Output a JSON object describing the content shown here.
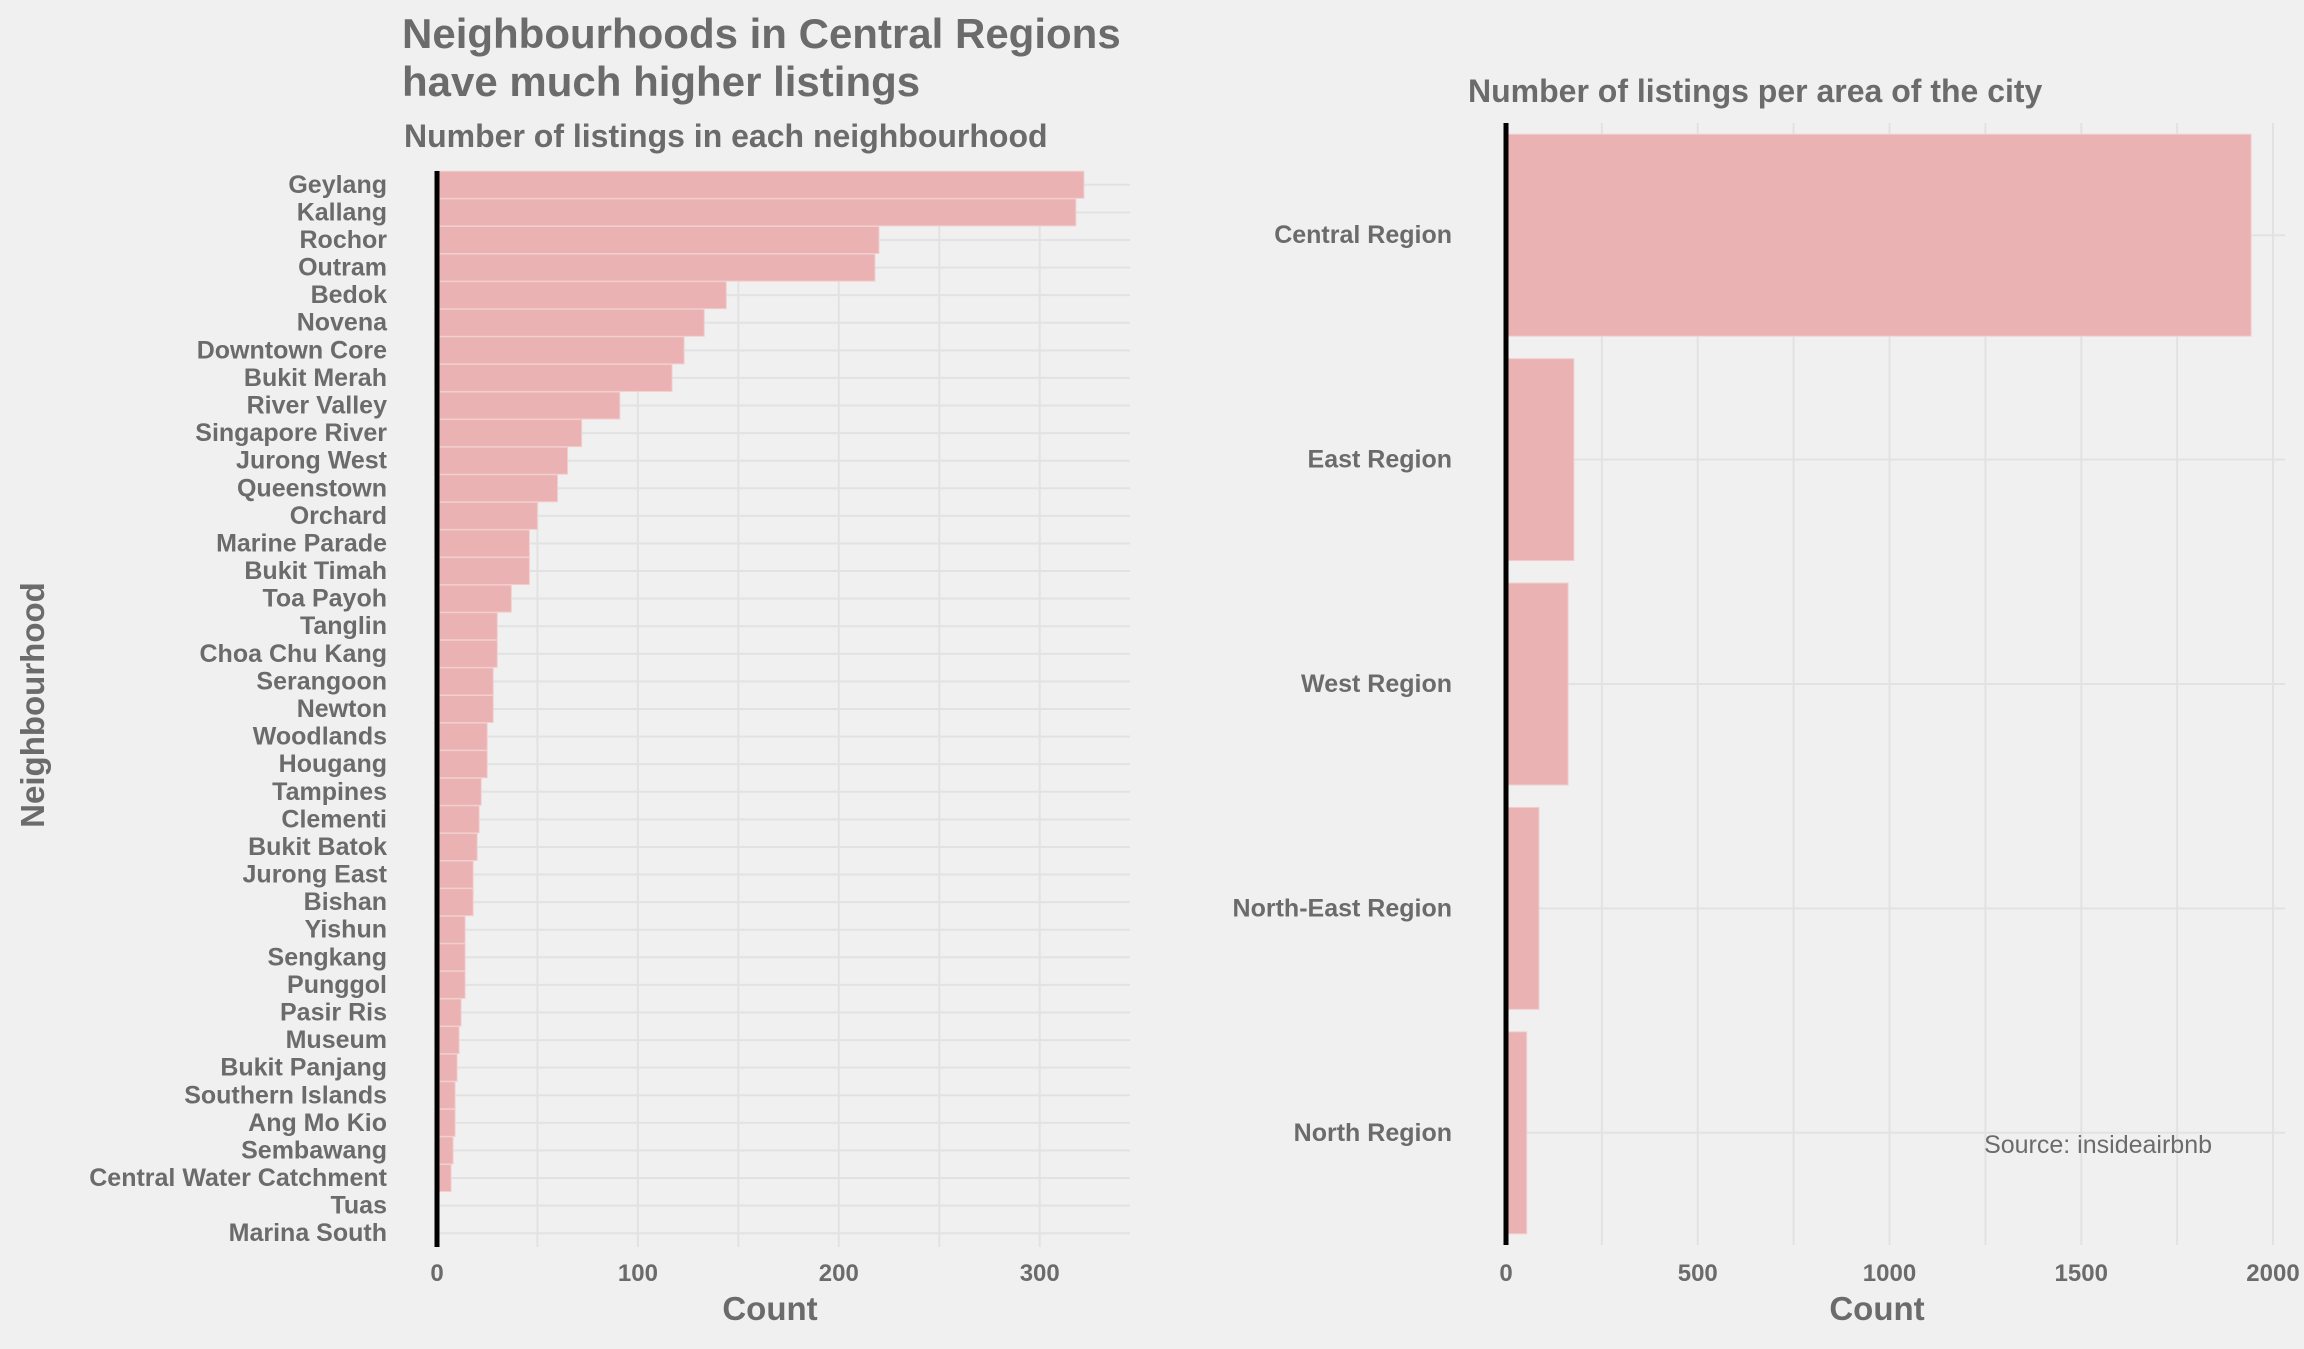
{
  "colors": {
    "background": "#f0f0f0",
    "bar": "#ebb2b3",
    "text": "#6b6b6b",
    "grid": "#e2e2e2",
    "zero_line": "#000000"
  },
  "figure": {
    "title": "Neighbourhoods in Central Regions\n have much higher listings",
    "source": "Source: insideairbnb"
  },
  "chart_data": [
    {
      "type": "bar",
      "orientation": "horizontal",
      "title": "Number of listings in each neighbourhood",
      "xlabel": "Count",
      "ylabel": "Neighbourhood",
      "xlim": [
        0,
        330
      ],
      "xticks": [
        0,
        100,
        200,
        300
      ],
      "grid": true,
      "categories": [
        "Geylang",
        "Kallang",
        "Rochor",
        "Outram",
        "Bedok",
        "Novena",
        "Downtown Core",
        "Bukit Merah",
        "River Valley",
        "Singapore River",
        "Jurong West",
        "Queenstown",
        "Orchard",
        "Marine Parade",
        "Bukit Timah",
        "Toa Payoh",
        "Tanglin",
        "Choa Chu Kang",
        "Serangoon",
        "Newton",
        "Woodlands",
        "Hougang",
        "Tampines",
        "Clementi",
        "Bukit Batok",
        "Jurong East",
        "Bishan",
        "Yishun",
        "Sengkang",
        "Punggol",
        "Pasir Ris",
        "Museum",
        "Bukit Panjang",
        "Southern Islands",
        "Ang Mo Kio",
        "Sembawang",
        "Central Water Catchment",
        "Tuas",
        "Marina South"
      ],
      "values": [
        322,
        318,
        220,
        218,
        144,
        133,
        123,
        117,
        91,
        72,
        65,
        60,
        50,
        46,
        46,
        37,
        30,
        30,
        28,
        28,
        25,
        25,
        22,
        21,
        20,
        18,
        18,
        14,
        14,
        14,
        12,
        11,
        10,
        9,
        9,
        8,
        7,
        1,
        1
      ]
    },
    {
      "type": "bar",
      "orientation": "horizontal",
      "title": "Number of listings per area of the city",
      "xlabel": "Count",
      "ylabel": "",
      "xlim": [
        0,
        2000
      ],
      "xticks": [
        0,
        500,
        1000,
        1500,
        2000
      ],
      "grid": true,
      "categories": [
        "Central Region",
        "East Region",
        "West Region",
        "North-East Region",
        "North Region"
      ],
      "values": [
        1943,
        177,
        162,
        86,
        54
      ]
    }
  ]
}
